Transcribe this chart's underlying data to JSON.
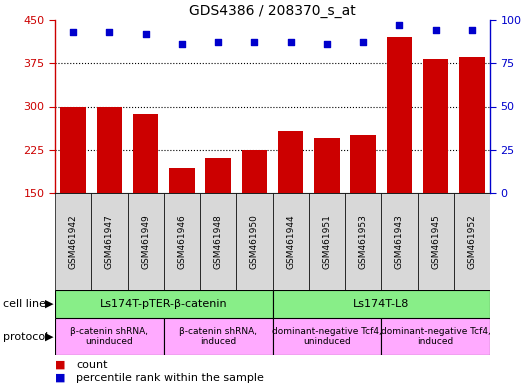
{
  "title": "GDS4386 / 208370_s_at",
  "samples": [
    "GSM461942",
    "GSM461947",
    "GSM461949",
    "GSM461946",
    "GSM461948",
    "GSM461950",
    "GSM461944",
    "GSM461951",
    "GSM461953",
    "GSM461943",
    "GSM461945",
    "GSM461952"
  ],
  "counts": [
    300,
    300,
    287,
    193,
    210,
    225,
    257,
    245,
    250,
    420,
    382,
    385
  ],
  "percentile_ranks": [
    93,
    93,
    92,
    86,
    87,
    87,
    87,
    86,
    87,
    97,
    94,
    94
  ],
  "ylim_left": [
    150,
    450
  ],
  "ylim_right": [
    0,
    100
  ],
  "yticks_left": [
    150,
    225,
    300,
    375,
    450
  ],
  "yticks_right": [
    0,
    25,
    50,
    75,
    100
  ],
  "bar_color": "#cc0000",
  "dot_color": "#0000cc",
  "cell_line_groups": [
    {
      "label": "Ls174T-pTER-β-catenin",
      "start": 0,
      "end": 6,
      "color": "#88ee88"
    },
    {
      "label": "Ls174T-L8",
      "start": 6,
      "end": 12,
      "color": "#88ee88"
    }
  ],
  "protocol_groups": [
    {
      "label": "β-catenin shRNA,\nuninduced",
      "start": 0,
      "end": 3,
      "color": "#ffaaff"
    },
    {
      "label": "β-catenin shRNA,\ninduced",
      "start": 3,
      "end": 6,
      "color": "#ffaaff"
    },
    {
      "label": "dominant-negative Tcf4,\nuninduced",
      "start": 6,
      "end": 9,
      "color": "#ffaaff"
    },
    {
      "label": "dominant-negative Tcf4,\ninduced",
      "start": 9,
      "end": 12,
      "color": "#ffaaff"
    }
  ],
  "background_color": "#ffffff"
}
